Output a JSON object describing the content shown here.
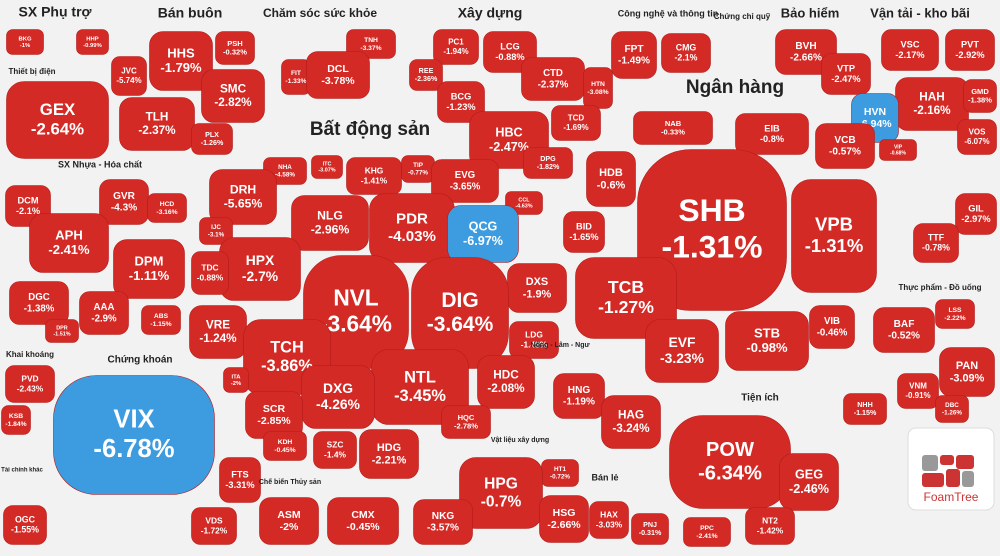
{
  "chart_data": {
    "type": "treemap",
    "groups": [
      {
        "name": "SX Phụ trợ",
        "categories": [
          "BKG",
          "HHP"
        ],
        "values": [
          -1,
          -0.99
        ],
        "value_labels": [
          "-1%",
          "-0.99%"
        ],
        "colors": [
          "#d42a26",
          "#d42a26"
        ]
      },
      {
        "name": "Thiết bị điện",
        "categories": [
          "GEX"
        ],
        "values": [
          -2.64
        ],
        "value_labels": [
          "-2.64%"
        ],
        "colors": [
          "#d42a26"
        ]
      },
      {
        "name": "Bán buôn",
        "categories": [
          "JVC",
          "HHS",
          "PSH",
          "SMC",
          "TLH",
          "PLX"
        ],
        "values": [
          -5.74,
          -1.79,
          -0.32,
          -2.82,
          -2.37,
          -1.26
        ],
        "value_labels": [
          "-5.74%",
          "-1.79%",
          "-0.32%",
          "-2.82%",
          "-2.37%",
          "-1.26%"
        ],
        "colors": [
          "#d42a26",
          "#d42a26",
          "#d42a26",
          "#d42a26",
          "#d42a26",
          "#d42a26"
        ]
      },
      {
        "name": "Chăm sóc sức khỏe",
        "categories": [
          "FIT",
          "TNH",
          "DCL"
        ],
        "values": [
          -1.33,
          -3.37,
          -3.78
        ],
        "value_labels": [
          "-1.33%",
          "-3.37%",
          "-3.78%"
        ],
        "colors": [
          "#d42a26",
          "#d42a26",
          "#d42a26"
        ]
      },
      {
        "name": "Xây dựng",
        "categories": [
          "PC1",
          "LCG",
          "REE",
          "BCG",
          "CTD",
          "HBC",
          "HTN",
          "TCD",
          "DPG"
        ],
        "values": [
          -1.94,
          -0.88,
          -2.36,
          -1.23,
          -2.37,
          -2.47,
          -3.08,
          -1.69,
          -1.82
        ],
        "value_labels": [
          "-1.94%",
          "-0.88%",
          "-2.36%",
          "-1.23%",
          "-2.37%",
          "-2.47%",
          "-3.08%",
          "-1.69%",
          "-1.82%"
        ],
        "colors": [
          "#d42a26",
          "#d42a26",
          "#d42a26",
          "#d42a26",
          "#d42a26",
          "#d42a26",
          "#d42a26",
          "#d42a26",
          "#d42a26"
        ]
      },
      {
        "name": "Công nghệ và thông tin",
        "categories": [
          "FPT",
          "CMG"
        ],
        "values": [
          -1.49,
          -2.1
        ],
        "value_labels": [
          "-1.49%",
          "-2.1%"
        ],
        "colors": [
          "#d42a26",
          "#d42a26"
        ]
      },
      {
        "name": "Chứng chỉ quỹ",
        "categories": [],
        "values": [],
        "value_labels": [],
        "colors": []
      },
      {
        "name": "Bảo hiểm",
        "categories": [
          "BVH"
        ],
        "values": [
          -2.66
        ],
        "value_labels": [
          "-2.66%"
        ],
        "colors": [
          "#d42a26"
        ]
      },
      {
        "name": "Vận tải - kho bãi",
        "categories": [
          "VSC",
          "PVT",
          "VTP",
          "HAH",
          "GMD",
          "HVN",
          "VIP",
          "VOS"
        ],
        "values": [
          -2.17,
          -2.92,
          -2.47,
          -2.16,
          -1.38,
          -6.94,
          -0.68,
          -6.07
        ],
        "value_labels": [
          "-2.17%",
          "-2.92%",
          "-2.47%",
          "-2.16%",
          "-1.38%",
          "-6.94%",
          "-0.68%",
          "-6.07%"
        ],
        "colors": [
          "#d42a26",
          "#d42a26",
          "#d42a26",
          "#d42a26",
          "#d42a26",
          "#3d9be0",
          "#d42a26",
          "#d42a26"
        ]
      },
      {
        "name": "Ngân hàng",
        "categories": [
          "NAB",
          "EIB",
          "VCB",
          "HDB",
          "SHB",
          "VPB",
          "BID",
          "TCB",
          "EVF",
          "STB",
          "VIB"
        ],
        "values": [
          -0.33,
          -0.8,
          -0.57,
          -0.6,
          -1.31,
          -1.31,
          -1.65,
          -1.27,
          -3.23,
          -0.98,
          -0.46
        ],
        "value_labels": [
          "-0.33%",
          "-0.8%",
          "-0.57%",
          "-0.6%",
          "-1.31%",
          "-1.31%",
          "-1.65%",
          "-1.27%",
          "-3.23%",
          "-0.98%",
          "-0.46%"
        ],
        "colors": [
          "#d42a26",
          "#d42a26",
          "#d42a26",
          "#d42a26",
          "#d42a26",
          "#d42a26",
          "#d42a26",
          "#d42a26",
          "#d42a26",
          "#d42a26",
          "#d42a26"
        ]
      },
      {
        "name": "Bất động sản",
        "categories": [
          "NHA",
          "ITC",
          "KHG",
          "TIP",
          "EVG",
          "CCL",
          "DRH",
          "NLG",
          "PDR",
          "QCG",
          "IJC",
          "HPX",
          "TDC",
          "DXS",
          "NVL",
          "DIG",
          "VRE",
          "TCH",
          "LDG",
          "HDC",
          "NTL",
          "DXG",
          "SCR",
          "HQC",
          "KDH",
          "SZC",
          "HDG"
        ],
        "values": [
          -4.58,
          -3.07,
          -1.41,
          -0.77,
          -3.65,
          -4.63,
          -5.65,
          -2.96,
          -4.03,
          -6.97,
          -3.1,
          -2.7,
          -0.88,
          -1.9,
          -3.64,
          -3.64,
          -1.24,
          -3.86,
          -1.49,
          -2.08,
          -3.45,
          -4.26,
          -2.85,
          -2.78,
          -0.45,
          -1.4,
          -2.21
        ],
        "value_labels": [
          "-4.58%",
          "-3.07%",
          "-1.41%",
          "-0.77%",
          "-3.65%",
          "-4.63%",
          "-5.65%",
          "-2.96%",
          "-4.03%",
          "-6.97%",
          "-3.1%",
          "-2.7%",
          "-0.88%",
          "-1.9%",
          "-3.64%",
          "-3.64%",
          "-1.24%",
          "-3.86%",
          "-1.49%",
          "-2.08%",
          "-3.45%",
          "-4.26%",
          "-2.85%",
          "-2.78%",
          "-0.45%",
          "-1.4%",
          "-2.21%"
        ],
        "colors": [
          "#d42a26",
          "#d42a26",
          "#d42a26",
          "#d42a26",
          "#d42a26",
          "#d42a26",
          "#d42a26",
          "#d42a26",
          "#d42a26",
          "#3d9be0",
          "#d42a26",
          "#d42a26",
          "#d42a26",
          "#d42a26",
          "#d42a26",
          "#d42a26",
          "#d42a26",
          "#d42a26",
          "#d42a26",
          "#d42a26",
          "#d42a26",
          "#d42a26",
          "#d42a26",
          "#d42a26",
          "#d42a26",
          "#d42a26",
          "#d42a26"
        ]
      },
      {
        "name": "SX Nhựa - Hóa chất",
        "categories": [
          "DCM",
          "GVR",
          "HCD",
          "APH",
          "DPM",
          "DGC",
          "AAA",
          "ABS",
          "DPR"
        ],
        "values": [
          -2.1,
          -4.3,
          -3.16,
          -2.41,
          -1.11,
          -1.38,
          -2.9,
          -1.15,
          -1.51
        ],
        "value_labels": [
          "-2.1%",
          "-4.3%",
          "-3.16%",
          "-2.41%",
          "-1.11%",
          "-1.38%",
          "-2.9%",
          "-1.15%",
          "-1.51%"
        ],
        "colors": [
          "#d42a26",
          "#d42a26",
          "#d42a26",
          "#d42a26",
          "#d42a26",
          "#d42a26",
          "#d42a26",
          "#d42a26",
          "#d42a26"
        ]
      },
      {
        "name": "Khai khoáng",
        "categories": [
          "PVD",
          "KSB"
        ],
        "values": [
          -2.43,
          -1.84
        ],
        "value_labels": [
          "-2.43%",
          "-1.84%"
        ],
        "colors": [
          "#d42a26",
          "#d42a26"
        ]
      },
      {
        "name": "Chứng khoán",
        "categories": [
          "VIX",
          "ITA",
          "FTS",
          "VDS"
        ],
        "values": [
          -6.78,
          -2,
          -3.31,
          -1.72
        ],
        "value_labels": [
          "-6.78%",
          "-2%",
          "-3.31%",
          "-1.72%"
        ],
        "colors": [
          "#3d9be0",
          "#d42a26",
          "#d42a26",
          "#d42a26"
        ]
      },
      {
        "name": "Tài chính khác",
        "categories": [
          "OGC"
        ],
        "values": [
          -1.55
        ],
        "value_labels": [
          "-1.55%"
        ],
        "colors": [
          "#d42a26"
        ]
      },
      {
        "name": "Chế biến Thủy sản",
        "categories": [
          "ASM",
          "CMX"
        ],
        "values": [
          -2,
          -0.45
        ],
        "value_labels": [
          "-2%",
          "-0.45%"
        ],
        "colors": [
          "#d42a26",
          "#d42a26"
        ]
      },
      {
        "name": "Vật liệu xây dựng",
        "categories": [
          "HT1",
          "HPG",
          "NKG",
          "HSG"
        ],
        "values": [
          -0.72,
          -0.7,
          -3.57,
          -2.66
        ],
        "value_labels": [
          "-0.72%",
          "-0.7%",
          "-3.57%",
          "-2.66%"
        ],
        "colors": [
          "#d42a26",
          "#d42a26",
          "#d42a26",
          "#d42a26"
        ]
      },
      {
        "name": "Nông - Lâm - Ngư",
        "categories": [
          "HNG",
          "HAG"
        ],
        "values": [
          -1.19,
          -3.24
        ],
        "value_labels": [
          "-1.19%",
          "-3.24%"
        ],
        "colors": [
          "#d42a26",
          "#d42a26"
        ]
      },
      {
        "name": "Bán lẻ",
        "categories": [
          "HAX",
          "PNJ"
        ],
        "values": [
          -3.03,
          -0.31
        ],
        "value_labels": [
          "-3.03%",
          "-0.31%"
        ],
        "colors": [
          "#d42a26",
          "#d42a26"
        ]
      },
      {
        "name": "Tiện ích",
        "categories": [
          "POW",
          "GEG",
          "NT2",
          "PPC"
        ],
        "values": [
          -6.34,
          -2.46,
          -1.42,
          -2.41
        ],
        "value_labels": [
          "-6.34%",
          "-2.46%",
          "-1.42%",
          "-2.41%"
        ],
        "colors": [
          "#d42a26",
          "#d42a26",
          "#d42a26",
          "#d42a26"
        ]
      },
      {
        "name": "Thực phẩm - Đồ uống",
        "categories": [
          "LSS",
          "BAF",
          "PAN",
          "VNM",
          "DBC",
          "NHH"
        ],
        "values": [
          -2.22,
          -0.52,
          -3.09,
          -0.91,
          -1.26,
          -1.15
        ],
        "value_labels": [
          "-2.22%",
          "-0.52%",
          "-3.09%",
          "-0.91%",
          "-1.26%",
          "-1.15%"
        ],
        "colors": [
          "#d42a26",
          "#d42a26",
          "#d42a26",
          "#d42a26",
          "#d42a26",
          "#d42a26"
        ]
      },
      {
        "name": null,
        "categories": [
          "GIL",
          "TTF"
        ],
        "values": [
          -2.97,
          -0.78
        ],
        "value_labels": [
          "-2.97%",
          "-0.78%"
        ],
        "colors": [
          "#d42a26",
          "#d42a26"
        ]
      }
    ]
  },
  "logo": "FoamTree"
}
